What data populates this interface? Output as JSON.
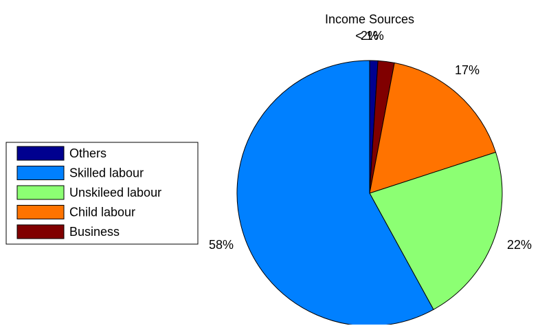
{
  "chart_data": {
    "type": "pie",
    "title": "Income Sources",
    "slices": [
      {
        "label": "Others",
        "value": 1,
        "display": "< 1%",
        "color": "#00008f"
      },
      {
        "label": "Business",
        "value": 2,
        "display": "2%",
        "color": "#800000"
      },
      {
        "label": "Child labour",
        "value": 17,
        "display": "17%",
        "color": "#ff7300"
      },
      {
        "label": "Unskileed labour",
        "value": 22,
        "display": "22%",
        "color": "#8cff73"
      },
      {
        "label": "Skilled labour",
        "value": 58,
        "display": "58%",
        "color": "#0080ff"
      }
    ],
    "legend": {
      "position": "left",
      "items": [
        {
          "label": "Others",
          "color": "#00008f"
        },
        {
          "label": "Skilled labour",
          "color": "#0080ff"
        },
        {
          "label": "Unskileed labour",
          "color": "#8cff73"
        },
        {
          "label": "Child labour",
          "color": "#ff7300"
        },
        {
          "label": "Business",
          "color": "#800000"
        }
      ]
    }
  }
}
